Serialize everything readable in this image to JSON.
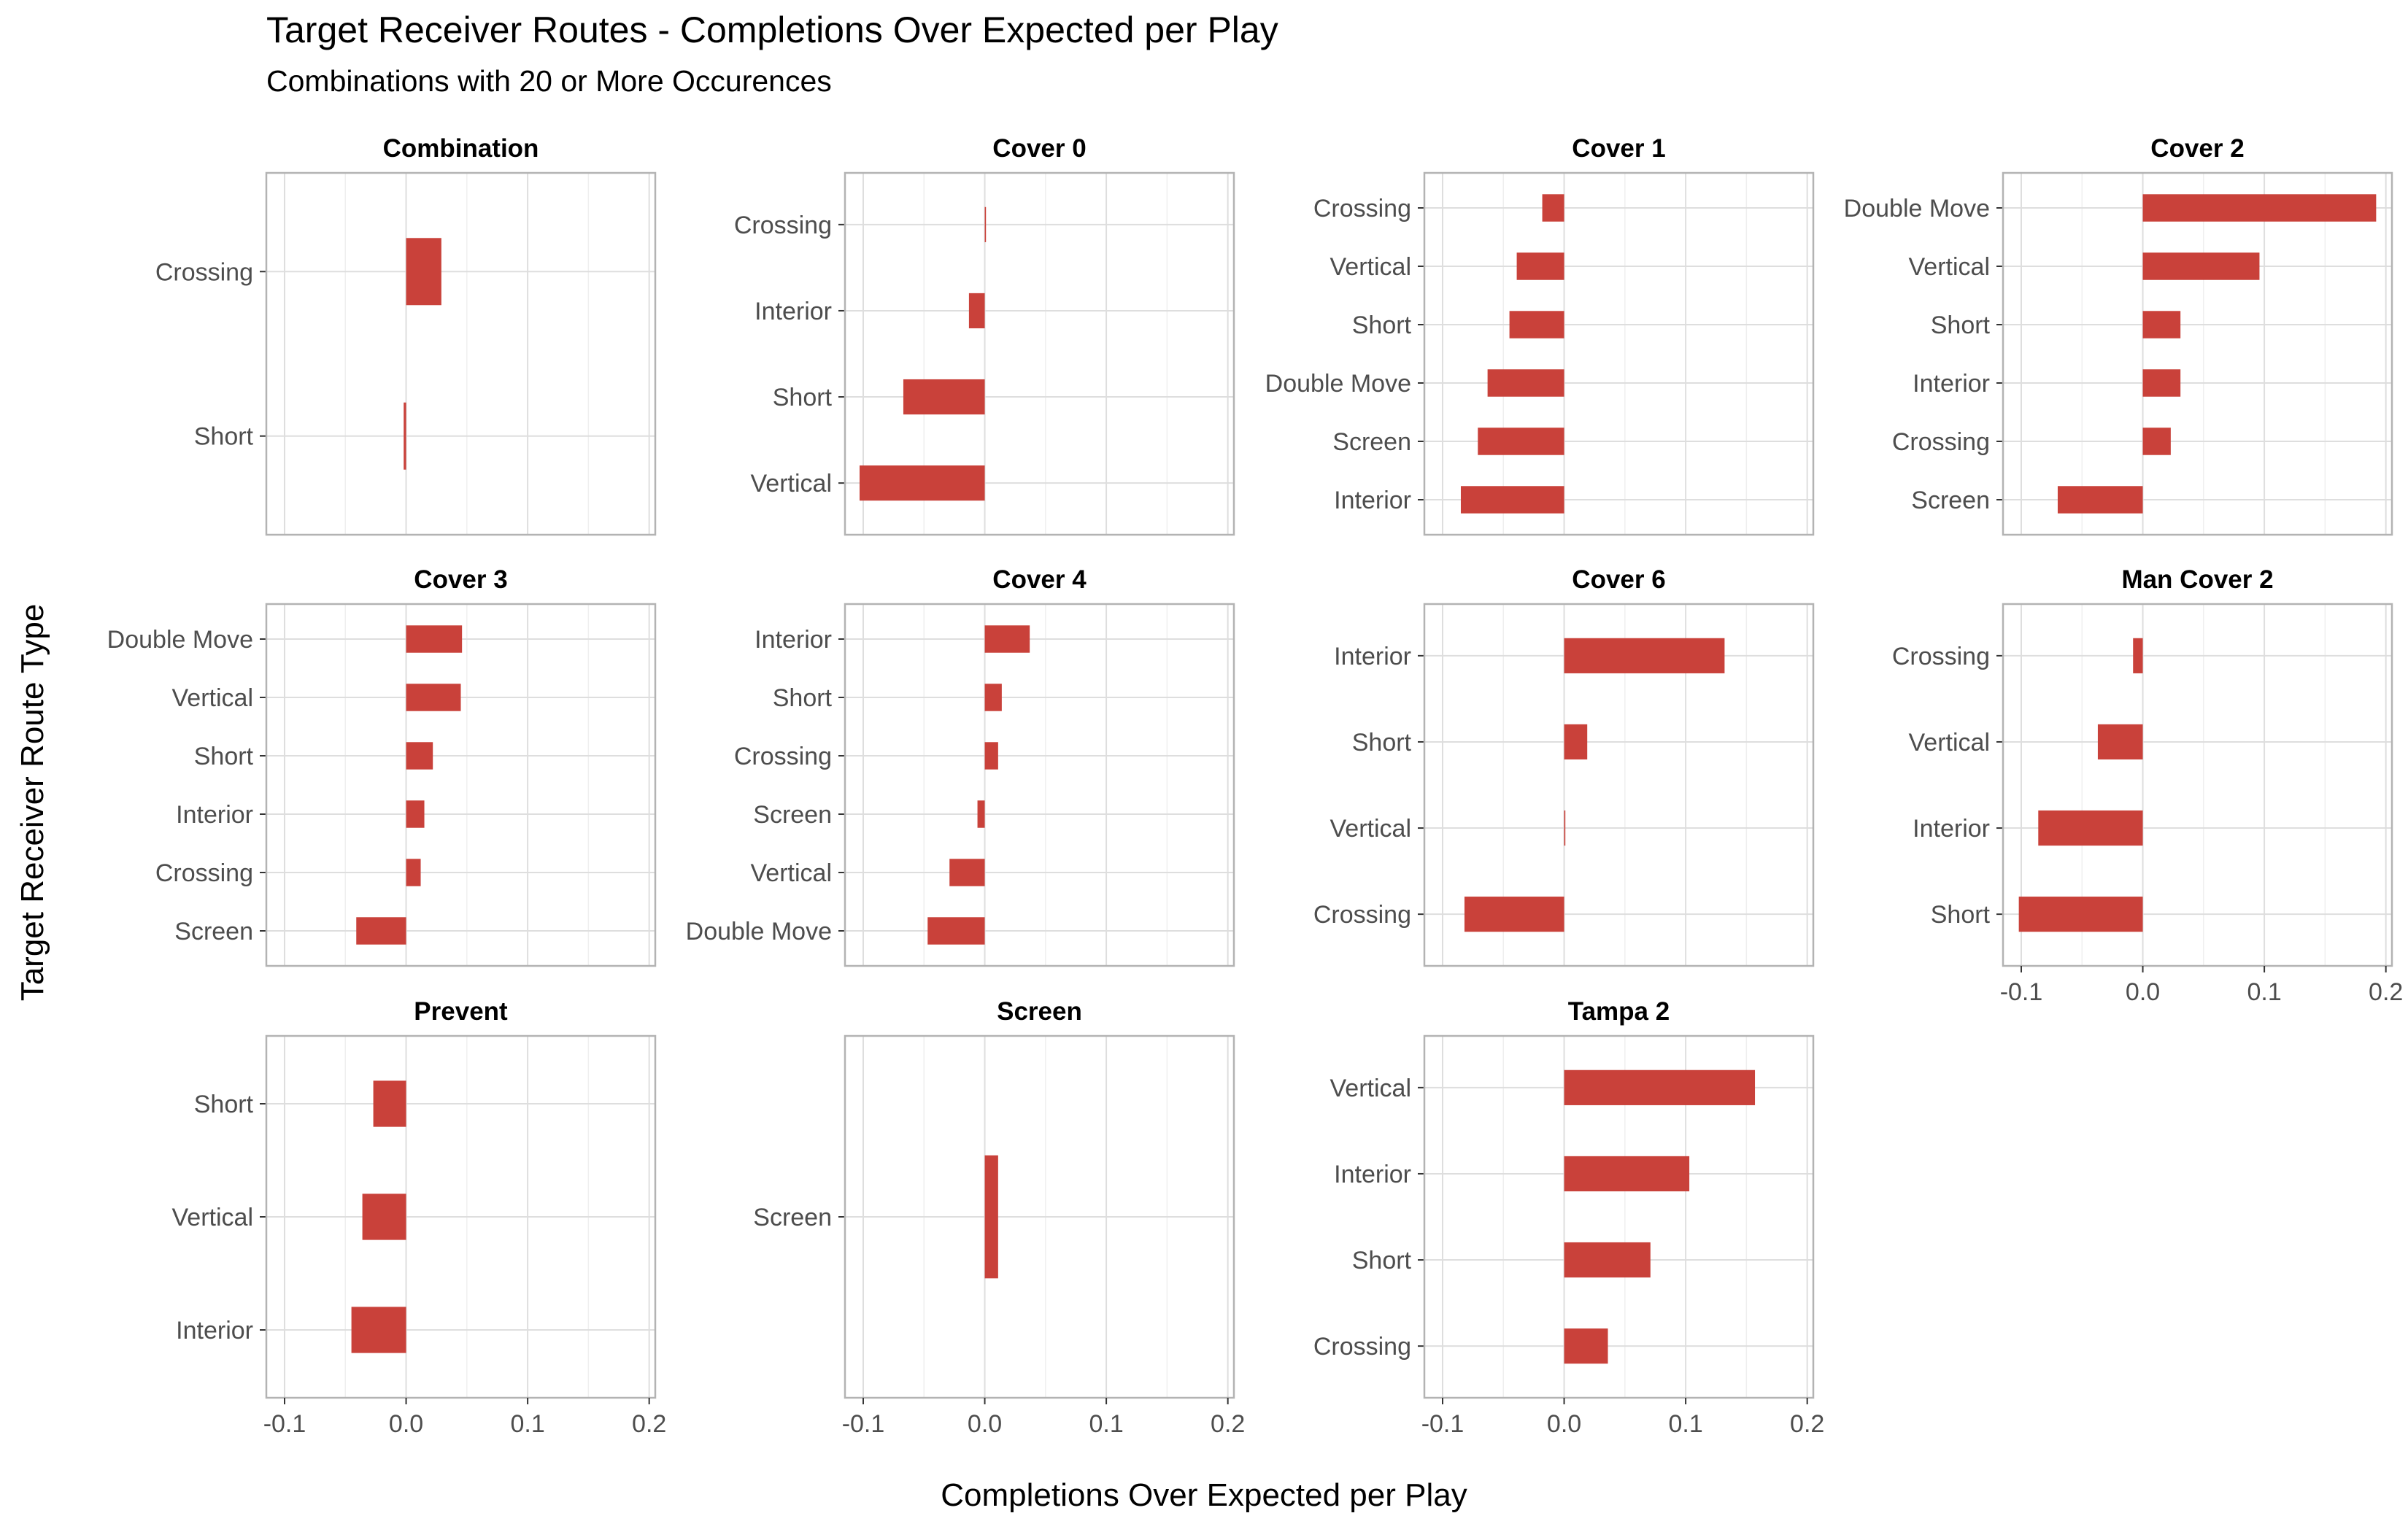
{
  "chart_data": {
    "type": "bar",
    "orientation": "horizontal",
    "facet_wrap": true,
    "title": "Target Receiver Routes - Completions Over Expected per Play",
    "subtitle": "Combinations with 20 or More Occurences",
    "xlabel": "Completions Over Expected per Play",
    "ylabel": "Target Receiver Route Type",
    "xlim": [
      -0.115,
      0.205
    ],
    "xticks": [
      -0.1,
      0.0,
      0.1,
      0.2
    ],
    "xtick_labels": [
      "-0.1",
      "0.0",
      "0.1",
      "0.2"
    ],
    "grid": true,
    "bar_color": "#C9413A",
    "panels": [
      {
        "name": "Combination",
        "categories": [
          "Crossing",
          "Short"
        ],
        "values": [
          0.029,
          -0.002
        ]
      },
      {
        "name": "Cover 0",
        "categories": [
          "Crossing",
          "Interior",
          "Short",
          "Vertical"
        ],
        "values": [
          0.001,
          -0.013,
          -0.067,
          -0.103
        ]
      },
      {
        "name": "Cover 1",
        "categories": [
          "Crossing",
          "Vertical",
          "Short",
          "Double Move",
          "Screen",
          "Interior"
        ],
        "values": [
          -0.018,
          -0.039,
          -0.045,
          -0.063,
          -0.071,
          -0.085
        ]
      },
      {
        "name": "Cover 2",
        "categories": [
          "Double Move",
          "Vertical",
          "Short",
          "Interior",
          "Crossing",
          "Screen"
        ],
        "values": [
          0.192,
          0.096,
          0.031,
          0.031,
          0.023,
          -0.07
        ]
      },
      {
        "name": "Cover 3",
        "categories": [
          "Double Move",
          "Vertical",
          "Short",
          "Interior",
          "Crossing",
          "Screen"
        ],
        "values": [
          0.046,
          0.045,
          0.022,
          0.015,
          0.012,
          -0.041
        ]
      },
      {
        "name": "Cover 4",
        "categories": [
          "Interior",
          "Short",
          "Crossing",
          "Screen",
          "Vertical",
          "Double Move"
        ],
        "values": [
          0.037,
          0.014,
          0.011,
          -0.006,
          -0.029,
          -0.047
        ]
      },
      {
        "name": "Cover 6",
        "categories": [
          "Interior",
          "Short",
          "Vertical",
          "Crossing"
        ],
        "values": [
          0.132,
          0.019,
          0.001,
          -0.082
        ]
      },
      {
        "name": "Man Cover 2",
        "categories": [
          "Crossing",
          "Vertical",
          "Interior",
          "Short"
        ],
        "values": [
          -0.008,
          -0.037,
          -0.086,
          -0.102
        ]
      },
      {
        "name": "Prevent",
        "categories": [
          "Short",
          "Vertical",
          "Interior"
        ],
        "values": [
          -0.027,
          -0.036,
          -0.045
        ]
      },
      {
        "name": "Screen",
        "categories": [
          "Screen"
        ],
        "values": [
          0.011
        ]
      },
      {
        "name": "Tampa 2",
        "categories": [
          "Vertical",
          "Interior",
          "Short",
          "Crossing"
        ],
        "values": [
          0.157,
          0.103,
          0.071,
          0.036
        ]
      }
    ]
  }
}
